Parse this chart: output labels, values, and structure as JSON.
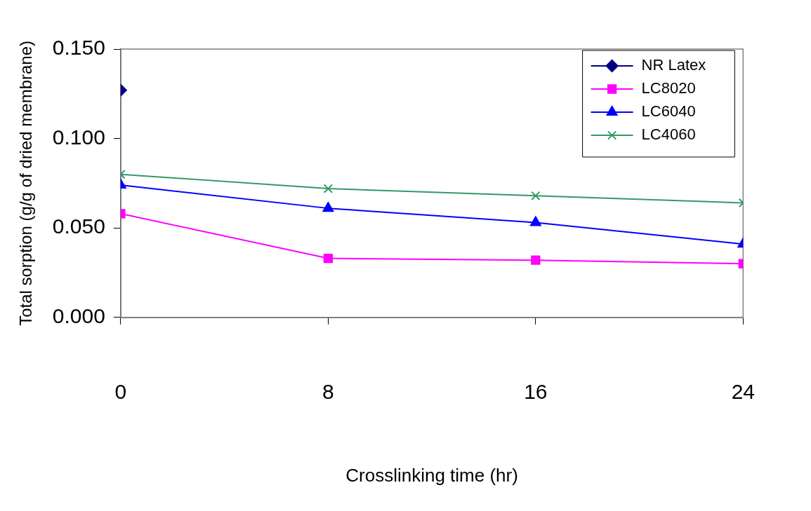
{
  "chart_data": {
    "type": "line",
    "xlabel": "Crosslinking time (hr)",
    "ylabel": "Total sorption (g/g of dried membrane)",
    "x": [
      0,
      8,
      16,
      24
    ],
    "series": [
      {
        "name": "NR Latex",
        "color": "#000080",
        "marker": "diamond",
        "values": [
          0.127,
          null,
          null,
          null
        ]
      },
      {
        "name": "LC8020",
        "color": "#ff00ff",
        "marker": "square",
        "values": [
          0.058,
          0.033,
          0.032,
          0.03
        ]
      },
      {
        "name": "LC6040",
        "color": "#0000ff",
        "marker": "triangle",
        "values": [
          0.074,
          0.061,
          0.053,
          0.041
        ]
      },
      {
        "name": "LC4060",
        "color": "#339966",
        "marker": "cross",
        "values": [
          0.08,
          0.072,
          0.068,
          0.064
        ]
      }
    ],
    "xlim": [
      0,
      24
    ],
    "xticks": [
      0,
      8,
      16,
      24
    ],
    "ylim": [
      0,
      0.15
    ],
    "yticks": [
      {
        "value": 0,
        "label": "0.000"
      },
      {
        "value": 0.05,
        "label": "0.050"
      },
      {
        "value": 0.1,
        "label": "0.100"
      },
      {
        "value": 0.15,
        "label": "0.150"
      }
    ],
    "grid": false,
    "legend": "top right",
    "line_style": "solid"
  }
}
